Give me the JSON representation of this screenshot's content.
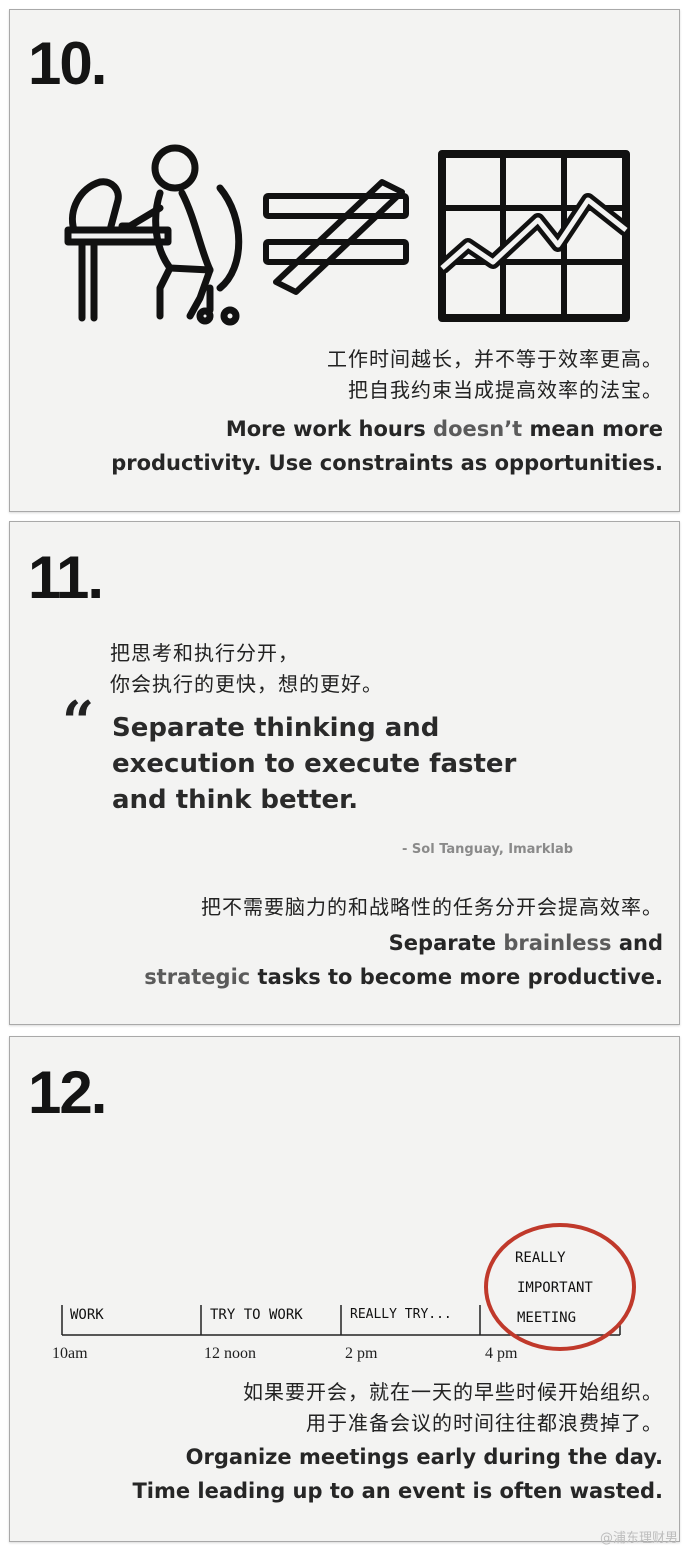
{
  "card10": {
    "number": "10.",
    "zh_line1": "工作时间越长，并不等于效率更高。",
    "zh_line2": "把自我约束当成提高效率的法宝。",
    "en_line1_a": "More work hours ",
    "en_line1_b": "doesn’t",
    "en_line1_c": " mean more",
    "en_line2": "productivity. Use constraints as opportunities."
  },
  "card11": {
    "number": "11.",
    "zh_line1": "把思考和执行分开，",
    "zh_line2": "你会执行的更快，想的更好。",
    "quote_mark": "“",
    "quote_line1": "Separate thinking and",
    "quote_line2": "execution to execute faster",
    "quote_line3": "and think better.",
    "attribution": "- Sol Tanguay, Imarklab",
    "zh_line3": "把不需要脑力的和战略性的任务分开会提高效率。",
    "en_line1_a": "Separate ",
    "en_line1_b": "brainless",
    "en_line1_c": " and",
    "en_line2_a": "strategic",
    "en_line2_b": " tasks to become more productive."
  },
  "card12": {
    "number": "12.",
    "timeline": [
      {
        "label": "WORK",
        "time": "10am"
      },
      {
        "label": "TRY TO WORK",
        "time": "12 noon"
      },
      {
        "label": "REALLY TRY...",
        "time": "2 pm"
      },
      {
        "label": "",
        "time": "4 pm"
      }
    ],
    "circled_line1": "REALLY",
    "circled_line2": "IMPORTANT",
    "circled_line3": "MEETING",
    "zh_line1": "如果要开会，就在一天的早些时候开始组织。",
    "zh_line2": "用于准备会议的时间往往都浪费掉了。",
    "en_line1": "Organize meetings early during the day.",
    "en_line2": "Time leading up to an event is often wasted."
  },
  "watermark": "@浦东理财男",
  "colors": {
    "card_bg": "#f3f3f2",
    "text": "#262626",
    "grey_word": "#5b5b5b",
    "circle": "#c0392b"
  },
  "icons": [
    "person-at-desk-icon",
    "not-equal-icon",
    "growth-chart-icon",
    "quote-mark-icon"
  ]
}
